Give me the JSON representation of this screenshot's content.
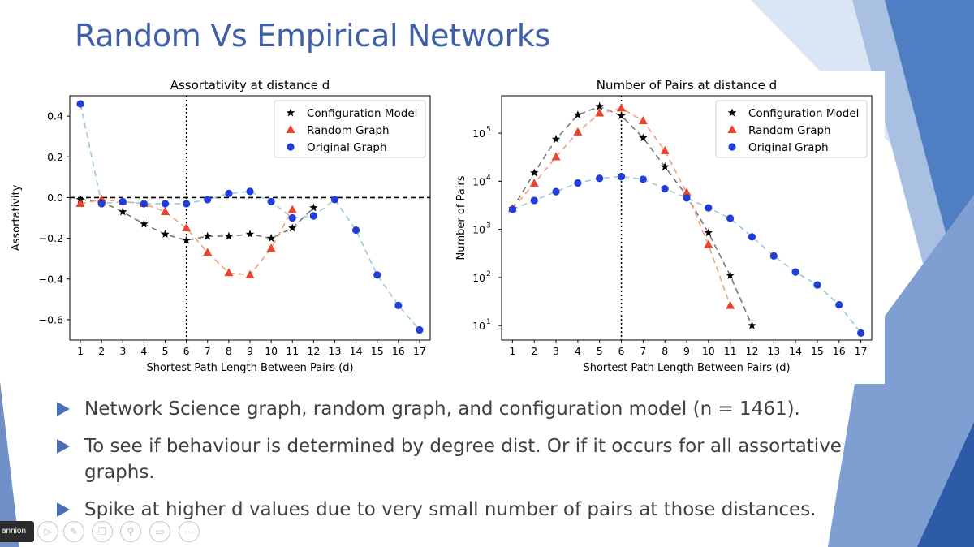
{
  "slide": {
    "title": "Random Vs Empirical Networks",
    "colors": {
      "title": "#3f5fa8",
      "bullet": "#4a6fb5",
      "accent_shapes": [
        "#1f4e99",
        "#4f81bd",
        "#8fb0dc",
        "#c6d7ef"
      ]
    }
  },
  "bullets": [
    {
      "text": "Network Science graph, random graph, and configuration model (n = 1461)."
    },
    {
      "text": "To see if behaviour is determined by degree dist. Or  if it occurs for all assortative graphs."
    },
    {
      "text": "Spike at higher d values due to very small number of pairs at those distances."
    }
  ],
  "presenter": {
    "name_tag": "annion"
  },
  "toolbar": {
    "icons": [
      "record-icon",
      "play-icon",
      "pen-icon",
      "copy-icon",
      "zoom-icon",
      "subtitle-icon",
      "more-icon"
    ],
    "more_label": "···"
  },
  "chart_data": [
    {
      "type": "scatter",
      "title": "Assortativity at distance d",
      "xlabel": "Shortest Path Length Between Pairs (d)",
      "ylabel": "Assortativity",
      "xlim": [
        0.5,
        17.5
      ],
      "ylim": [
        -0.7,
        0.5
      ],
      "yscale": "linear",
      "xticks": [
        1,
        2,
        3,
        4,
        5,
        6,
        7,
        8,
        9,
        10,
        11,
        12,
        13,
        14,
        15,
        16,
        17
      ],
      "xtick_labels": [
        "1",
        "2",
        "3",
        "4",
        "5",
        "6",
        "7",
        "8",
        "9",
        "10",
        "11",
        "12",
        "13",
        "14",
        "15",
        "16",
        "17"
      ],
      "yticks": [
        0.4,
        0.2,
        0.0,
        -0.2,
        -0.4,
        -0.6
      ],
      "ytick_labels": [
        "0.4",
        "0.2",
        "0.0",
        "−0.2",
        "−0.4",
        "−0.6"
      ],
      "hline": 0.0,
      "vline": 6,
      "legend_position": "top-right",
      "series": [
        {
          "name": "Configuration Model",
          "marker": "star",
          "color": "#000000",
          "line_color": "#777777",
          "x": [
            1,
            2,
            3,
            4,
            5,
            6,
            7,
            8,
            9,
            10,
            11,
            12
          ],
          "y": [
            -0.01,
            -0.02,
            -0.07,
            -0.13,
            -0.18,
            -0.21,
            -0.19,
            -0.19,
            -0.18,
            -0.2,
            -0.15,
            -0.05
          ]
        },
        {
          "name": "Random Graph",
          "marker": "triangle",
          "color": "#e8452c",
          "line_color": "#f2a079",
          "x": [
            1,
            2,
            3,
            4,
            5,
            6,
            7,
            8,
            9,
            10,
            11
          ],
          "y": [
            -0.03,
            -0.01,
            -0.02,
            -0.03,
            -0.07,
            -0.15,
            -0.27,
            -0.37,
            -0.38,
            -0.25,
            -0.06
          ]
        },
        {
          "name": "Original Graph",
          "marker": "circle",
          "color": "#1f3fd8",
          "line_color": "#9ec8d8",
          "x": [
            1,
            2,
            3,
            4,
            5,
            6,
            7,
            8,
            9,
            10,
            11,
            12,
            13,
            14,
            15,
            16,
            17
          ],
          "y": [
            0.46,
            -0.03,
            -0.02,
            -0.03,
            -0.03,
            -0.03,
            -0.01,
            0.02,
            0.03,
            -0.02,
            -0.1,
            -0.09,
            -0.01,
            -0.16,
            -0.38,
            -0.53,
            -0.65
          ]
        }
      ]
    },
    {
      "type": "scatter",
      "title": "Number of Pairs at distance d",
      "xlabel": "Shortest Path Length Between Pairs (d)",
      "ylabel": "Number of Pairs",
      "xlim": [
        0.5,
        17.5
      ],
      "ylim": [
        5,
        600000
      ],
      "yscale": "log",
      "xticks": [
        1,
        2,
        3,
        4,
        5,
        6,
        7,
        8,
        9,
        10,
        11,
        12,
        13,
        14,
        15,
        16,
        17
      ],
      "xtick_labels": [
        "1",
        "2",
        "3",
        "4",
        "5",
        "6",
        "7",
        "8",
        "9",
        "10",
        "11",
        "12",
        "13",
        "14",
        "15",
        "16",
        "17"
      ],
      "yticks": [
        100000,
        10000,
        1000,
        100,
        10
      ],
      "ytick_base": [
        "10",
        "10",
        "10",
        "10",
        "10"
      ],
      "ytick_exp": [
        "5",
        "4",
        "3",
        "2",
        "1"
      ],
      "vline": 6,
      "legend_position": "top-right",
      "series": [
        {
          "name": "Configuration Model",
          "marker": "star",
          "color": "#000000",
          "line_color": "#777777",
          "x": [
            1,
            2,
            3,
            4,
            5,
            6,
            7,
            8,
            9,
            10,
            11,
            12
          ],
          "y": [
            2700,
            15000,
            75000,
            240000,
            360000,
            230000,
            80000,
            20000,
            5000,
            850,
            110,
            10
          ]
        },
        {
          "name": "Random Graph",
          "marker": "triangle",
          "color": "#e8452c",
          "line_color": "#f2a079",
          "x": [
            1,
            2,
            3,
            4,
            5,
            6,
            7,
            8,
            9,
            10,
            11
          ],
          "y": [
            2700,
            9000,
            32000,
            105000,
            260000,
            330000,
            180000,
            43000,
            5800,
            480,
            26
          ]
        },
        {
          "name": "Original Graph",
          "marker": "circle",
          "color": "#1f3fd8",
          "line_color": "#9ec8d8",
          "x": [
            1,
            2,
            3,
            4,
            5,
            6,
            7,
            8,
            9,
            10,
            11,
            12,
            13,
            14,
            15,
            16,
            17
          ],
          "y": [
            2600,
            4000,
            6100,
            9200,
            11500,
            12500,
            11000,
            7000,
            4500,
            2800,
            1700,
            700,
            280,
            130,
            70,
            27,
            7
          ]
        }
      ]
    }
  ]
}
